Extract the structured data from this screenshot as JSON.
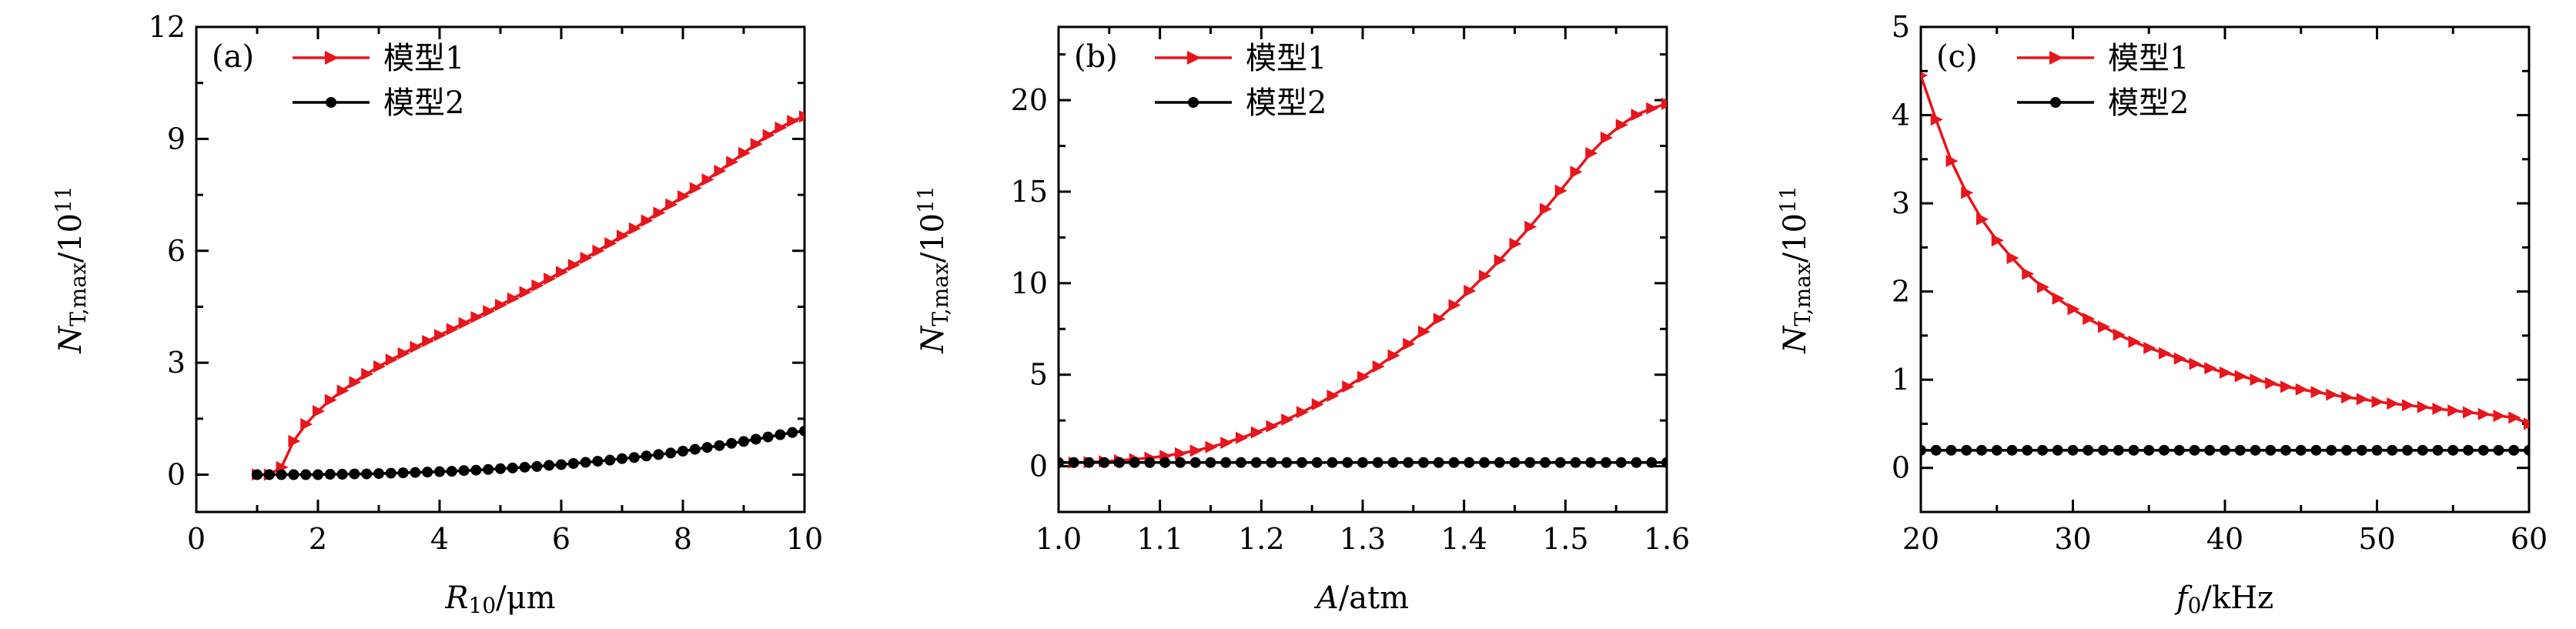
{
  "chart_data": [
    {
      "type": "line",
      "panel_label": "(a)",
      "xlabel": "R10/μm",
      "xlabel_parts": {
        "var": "R",
        "sub": "10",
        "unit": "/μm"
      },
      "ylabel": "N_T,max/10^11",
      "ylabel_parts": {
        "var": "N",
        "sub": "T,max",
        "unit": "/10",
        "sup": "11"
      },
      "xlim": [
        0,
        10
      ],
      "ylim": [
        -1,
        12
      ],
      "xticks": [
        0,
        2,
        4,
        6,
        8,
        10
      ],
      "xtick_labels": [
        "0",
        "2",
        "4",
        "6",
        "8",
        "10"
      ],
      "yticks": [
        0,
        3,
        6,
        9,
        12
      ],
      "ytick_labels": [
        "0",
        "3",
        "6",
        "9",
        "12"
      ],
      "legend_position": "top-left",
      "series": [
        {
          "name": "模型1",
          "color": "#e8151b",
          "marker": "triangle-right",
          "x": [
            1.0,
            1.2,
            1.4,
            1.6,
            1.8,
            2.0,
            2.2,
            2.4,
            2.6,
            2.8,
            3.0,
            3.2,
            3.4,
            3.6,
            3.8,
            4.0,
            4.2,
            4.4,
            4.6,
            4.8,
            5.0,
            5.2,
            5.4,
            5.6,
            5.8,
            6.0,
            6.2,
            6.4,
            6.6,
            6.8,
            7.0,
            7.2,
            7.4,
            7.6,
            7.8,
            8.0,
            8.2,
            8.4,
            8.6,
            8.8,
            9.0,
            9.2,
            9.4,
            9.6,
            9.8,
            10.0
          ],
          "values": [
            0.0,
            0.0,
            0.2,
            0.9,
            1.35,
            1.7,
            2.0,
            2.25,
            2.48,
            2.7,
            2.9,
            3.08,
            3.25,
            3.42,
            3.58,
            3.74,
            3.9,
            4.06,
            4.22,
            4.38,
            4.55,
            4.72,
            4.89,
            5.07,
            5.25,
            5.43,
            5.62,
            5.81,
            6.0,
            6.2,
            6.4,
            6.6,
            6.81,
            7.02,
            7.24,
            7.46,
            7.68,
            7.91,
            8.14,
            8.38,
            8.62,
            8.86,
            9.1,
            9.3,
            9.48,
            9.6
          ]
        },
        {
          "name": "模型2",
          "color": "#000000",
          "marker": "circle",
          "x": [
            1.0,
            1.2,
            1.4,
            1.6,
            1.8,
            2.0,
            2.2,
            2.4,
            2.6,
            2.8,
            3.0,
            3.2,
            3.4,
            3.6,
            3.8,
            4.0,
            4.2,
            4.4,
            4.6,
            4.8,
            5.0,
            5.2,
            5.4,
            5.6,
            5.8,
            6.0,
            6.2,
            6.4,
            6.6,
            6.8,
            7.0,
            7.2,
            7.4,
            7.6,
            7.8,
            8.0,
            8.2,
            8.4,
            8.6,
            8.8,
            9.0,
            9.2,
            9.4,
            9.6,
            9.8,
            10.0
          ],
          "values": [
            0.0,
            0.0,
            0.0,
            0.0,
            0.0,
            0.0,
            0.01,
            0.01,
            0.02,
            0.02,
            0.03,
            0.04,
            0.05,
            0.06,
            0.07,
            0.08,
            0.09,
            0.11,
            0.12,
            0.14,
            0.16,
            0.18,
            0.2,
            0.22,
            0.25,
            0.27,
            0.3,
            0.33,
            0.36,
            0.39,
            0.43,
            0.46,
            0.5,
            0.54,
            0.58,
            0.63,
            0.68,
            0.73,
            0.78,
            0.84,
            0.89,
            0.95,
            1.01,
            1.07,
            1.13,
            1.17
          ]
        }
      ]
    },
    {
      "type": "line",
      "panel_label": "(b)",
      "xlabel": "A/atm",
      "xlabel_parts": {
        "var": "A",
        "sub": "",
        "unit": "/atm"
      },
      "ylabel": "N_T,max/10^11",
      "ylabel_parts": {
        "var": "N",
        "sub": "T,max",
        "unit": "/10",
        "sup": "11"
      },
      "xlim": [
        1.0,
        1.6
      ],
      "ylim": [
        -2.5,
        24
      ],
      "xticks": [
        1.0,
        1.1,
        1.2,
        1.3,
        1.4,
        1.5,
        1.6
      ],
      "xtick_labels": [
        "1.0",
        "1.1",
        "1.2",
        "1.3",
        "1.4",
        "1.5",
        "1.6"
      ],
      "yticks": [
        0,
        5,
        10,
        15,
        20
      ],
      "ytick_labels": [
        "0",
        "5",
        "10",
        "15",
        "20"
      ],
      "legend_position": "top-left",
      "series": [
        {
          "name": "模型1",
          "color": "#e8151b",
          "marker": "triangle-right",
          "x": [
            1.0,
            1.015,
            1.03,
            1.045,
            1.06,
            1.075,
            1.09,
            1.105,
            1.12,
            1.135,
            1.15,
            1.165,
            1.18,
            1.195,
            1.21,
            1.225,
            1.24,
            1.255,
            1.27,
            1.285,
            1.3,
            1.315,
            1.33,
            1.345,
            1.36,
            1.375,
            1.39,
            1.405,
            1.42,
            1.435,
            1.45,
            1.465,
            1.48,
            1.495,
            1.51,
            1.525,
            1.54,
            1.555,
            1.57,
            1.585,
            1.6
          ],
          "values": [
            0.2,
            0.2,
            0.22,
            0.26,
            0.32,
            0.38,
            0.46,
            0.56,
            0.7,
            0.85,
            1.05,
            1.28,
            1.55,
            1.85,
            2.18,
            2.55,
            2.95,
            3.38,
            3.85,
            4.35,
            4.88,
            5.45,
            6.05,
            6.68,
            7.35,
            8.05,
            8.8,
            9.58,
            10.4,
            11.25,
            12.15,
            13.08,
            14.05,
            15.05,
            16.08,
            17.1,
            17.95,
            18.65,
            19.2,
            19.55,
            19.8
          ]
        },
        {
          "name": "模型2",
          "color": "#000000",
          "marker": "circle",
          "x": [
            1.0,
            1.015,
            1.03,
            1.045,
            1.06,
            1.075,
            1.09,
            1.105,
            1.12,
            1.135,
            1.15,
            1.165,
            1.18,
            1.195,
            1.21,
            1.225,
            1.24,
            1.255,
            1.27,
            1.285,
            1.3,
            1.315,
            1.33,
            1.345,
            1.36,
            1.375,
            1.39,
            1.405,
            1.42,
            1.435,
            1.45,
            1.465,
            1.48,
            1.495,
            1.51,
            1.525,
            1.54,
            1.555,
            1.57,
            1.585,
            1.6
          ],
          "values": [
            0.2,
            0.2,
            0.2,
            0.2,
            0.2,
            0.2,
            0.2,
            0.2,
            0.2,
            0.2,
            0.2,
            0.2,
            0.2,
            0.2,
            0.2,
            0.2,
            0.2,
            0.2,
            0.2,
            0.2,
            0.2,
            0.2,
            0.2,
            0.2,
            0.2,
            0.2,
            0.2,
            0.2,
            0.2,
            0.2,
            0.2,
            0.2,
            0.2,
            0.2,
            0.2,
            0.2,
            0.2,
            0.2,
            0.2,
            0.2,
            0.2
          ]
        }
      ]
    },
    {
      "type": "line",
      "panel_label": "(c)",
      "xlabel": "f0/kHz",
      "xlabel_parts": {
        "var": "f",
        "sub": "0",
        "unit": "/kHz"
      },
      "ylabel": "N_T,max/10^11",
      "ylabel_parts": {
        "var": "N",
        "sub": "T,max",
        "unit": "/10",
        "sup": "11"
      },
      "xlim": [
        20,
        60
      ],
      "ylim": [
        -0.5,
        5
      ],
      "xticks": [
        20,
        30,
        40,
        50,
        60
      ],
      "xtick_labels": [
        "20",
        "30",
        "40",
        "50",
        "60"
      ],
      "yticks": [
        0,
        1,
        2,
        3,
        4,
        5
      ],
      "ytick_labels": [
        "0",
        "1",
        "2",
        "3",
        "4",
        "5"
      ],
      "legend_position": "top-left",
      "series": [
        {
          "name": "模型1",
          "color": "#e8151b",
          "marker": "triangle-right",
          "x": [
            20,
            21,
            22,
            23,
            24,
            25,
            26,
            27,
            28,
            29,
            30,
            31,
            32,
            33,
            34,
            35,
            36,
            37,
            38,
            39,
            40,
            41,
            42,
            43,
            44,
            45,
            46,
            47,
            48,
            49,
            50,
            51,
            52,
            53,
            54,
            55,
            56,
            57,
            58,
            59,
            60
          ],
          "values": [
            4.45,
            3.95,
            3.48,
            3.12,
            2.82,
            2.58,
            2.38,
            2.2,
            2.05,
            1.92,
            1.8,
            1.69,
            1.6,
            1.51,
            1.43,
            1.36,
            1.3,
            1.24,
            1.18,
            1.13,
            1.08,
            1.04,
            1.0,
            0.96,
            0.92,
            0.89,
            0.86,
            0.83,
            0.8,
            0.78,
            0.75,
            0.73,
            0.71,
            0.69,
            0.67,
            0.65,
            0.63,
            0.61,
            0.59,
            0.57,
            0.5
          ]
        },
        {
          "name": "模型2",
          "color": "#000000",
          "marker": "circle",
          "x": [
            20,
            21,
            22,
            23,
            24,
            25,
            26,
            27,
            28,
            29,
            30,
            31,
            32,
            33,
            34,
            35,
            36,
            37,
            38,
            39,
            40,
            41,
            42,
            43,
            44,
            45,
            46,
            47,
            48,
            49,
            50,
            51,
            52,
            53,
            54,
            55,
            56,
            57,
            58,
            59,
            60
          ],
          "values": [
            0.2,
            0.2,
            0.2,
            0.2,
            0.2,
            0.2,
            0.2,
            0.2,
            0.2,
            0.2,
            0.2,
            0.2,
            0.2,
            0.2,
            0.2,
            0.2,
            0.2,
            0.2,
            0.2,
            0.2,
            0.2,
            0.2,
            0.2,
            0.2,
            0.2,
            0.2,
            0.2,
            0.2,
            0.2,
            0.2,
            0.2,
            0.2,
            0.2,
            0.2,
            0.2,
            0.2,
            0.2,
            0.2,
            0.2,
            0.2,
            0.2
          ]
        }
      ]
    }
  ]
}
